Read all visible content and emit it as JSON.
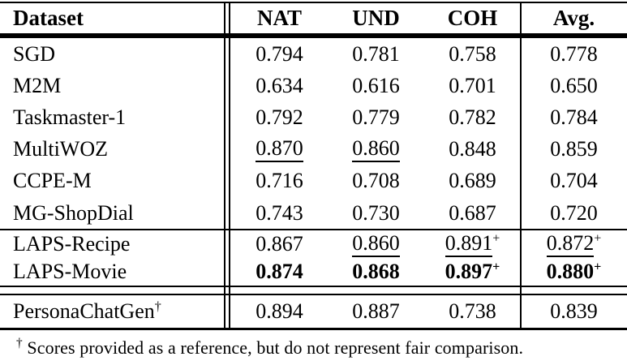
{
  "table": {
    "header": {
      "dataset": "Dataset",
      "nat": "NAT",
      "und": "UND",
      "coh": "COH",
      "avg": "Avg."
    },
    "rows": [
      {
        "name": "SGD",
        "nat": {
          "v": "0.794"
        },
        "und": {
          "v": "0.781"
        },
        "coh": {
          "v": "0.758"
        },
        "avg": {
          "v": "0.778"
        }
      },
      {
        "name": "M2M",
        "nat": {
          "v": "0.634"
        },
        "und": {
          "v": "0.616"
        },
        "coh": {
          "v": "0.701"
        },
        "avg": {
          "v": "0.650"
        }
      },
      {
        "name": "Taskmaster-1",
        "nat": {
          "v": "0.792"
        },
        "und": {
          "v": "0.779"
        },
        "coh": {
          "v": "0.782"
        },
        "avg": {
          "v": "0.784"
        }
      },
      {
        "name": "MultiWOZ",
        "nat": {
          "v": "0.870",
          "style": "underline"
        },
        "und": {
          "v": "0.860",
          "style": "underline"
        },
        "coh": {
          "v": "0.848"
        },
        "avg": {
          "v": "0.859"
        }
      },
      {
        "name": "CCPE-M",
        "nat": {
          "v": "0.716"
        },
        "und": {
          "v": "0.708"
        },
        "coh": {
          "v": "0.689"
        },
        "avg": {
          "v": "0.704"
        }
      },
      {
        "name": "MG-ShopDial",
        "nat": {
          "v": "0.743"
        },
        "und": {
          "v": "0.730"
        },
        "coh": {
          "v": "0.687"
        },
        "avg": {
          "v": "0.720"
        }
      },
      {
        "name": "LAPS-Recipe",
        "nat": {
          "v": "0.867"
        },
        "und": {
          "v": "0.860",
          "style": "underline"
        },
        "coh": {
          "v": "0.891",
          "sup": "+",
          "style": "underline"
        },
        "avg": {
          "v": "0.872",
          "sup": "+",
          "style": "underline"
        }
      },
      {
        "name": "LAPS-Movie",
        "nat": {
          "v": "0.874",
          "style": "bold"
        },
        "und": {
          "v": "0.868",
          "style": "bold"
        },
        "coh": {
          "v": "0.897",
          "sup": "+",
          "style": "bold"
        },
        "avg": {
          "v": "0.880",
          "sup": "+",
          "style": "bold"
        }
      },
      {
        "name": "PersonaChatGen",
        "name_sup": "†",
        "nat": {
          "v": "0.894"
        },
        "und": {
          "v": "0.887"
        },
        "coh": {
          "v": "0.738"
        },
        "avg": {
          "v": "0.839"
        }
      }
    ],
    "footnote": {
      "symbol": "†",
      "text": " Scores provided as a reference, but do not represent fair comparison."
    }
  }
}
